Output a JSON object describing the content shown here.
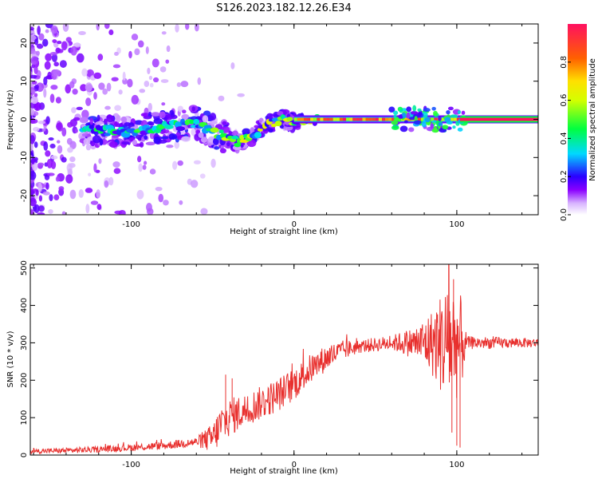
{
  "title": "S126.2023.182.12.26.E34",
  "chart_data": [
    {
      "type": "heatmap",
      "xlabel": "Height of straight line (km)",
      "ylabel": "Frequency (Hz)",
      "xlim": [
        -162,
        150
      ],
      "ylim": [
        -25,
        25
      ],
      "xticks": [
        "-100",
        "0",
        "100"
      ],
      "yticks": [
        "-20",
        "-10",
        "0",
        "10",
        "20"
      ],
      "ytick_values": [
        -20,
        -10,
        0,
        10,
        20
      ],
      "xtick_values": [
        -100,
        0,
        100
      ],
      "colorbar": {
        "label": "Normalized spectral amplitude",
        "ticks": [
          "0.0",
          "0.2",
          "0.4",
          "0.6",
          "0.8"
        ],
        "tick_values": [
          0,
          0.2,
          0.4,
          0.6,
          0.8
        ],
        "range": [
          0,
          1
        ],
        "colors": [
          "#ffffff",
          "#d8b4ff",
          "#8a00ff",
          "#2a00ff",
          "#00d9ff",
          "#00ff40",
          "#d4ff00",
          "#ffe000",
          "#ff6000",
          "#ff1060"
        ]
      },
      "ridge": {
        "x": [
          -100,
          -80,
          -60,
          -45,
          -35,
          -25,
          -15,
          -5,
          5,
          15,
          60,
          80,
          100,
          150
        ],
        "y": [
          -3,
          -2,
          -1,
          -4,
          -6,
          -4,
          -1,
          0,
          -1,
          0,
          0,
          0,
          0,
          0
        ]
      }
    },
    {
      "type": "line",
      "xlabel": "Height of straight line (km)",
      "ylabel": "SNR (10 * v/v)",
      "xlim": [
        -162,
        150
      ],
      "ylim": [
        0,
        510
      ],
      "xticks": [
        "-100",
        "0",
        "100"
      ],
      "yticks": [
        "0",
        "100",
        "200",
        "300",
        "400",
        "500"
      ],
      "ytick_values": [
        0,
        100,
        200,
        300,
        400,
        500
      ],
      "xtick_values": [
        -100,
        0,
        100
      ],
      "color": "#e8302e",
      "profile": {
        "x": [
          -162,
          -140,
          -120,
          -100,
          -80,
          -60,
          -50,
          -45,
          -40,
          -30,
          -20,
          -10,
          0,
          10,
          20,
          30,
          40,
          50,
          60,
          70,
          80,
          90,
          100,
          110,
          120,
          150
        ],
        "y": [
          10,
          12,
          15,
          20,
          25,
          35,
          45,
          80,
          100,
          120,
          140,
          160,
          190,
          230,
          260,
          280,
          290,
          295,
          300,
          300,
          300,
          300,
          300,
          300,
          300,
          300
        ]
      },
      "noise": {
        "x": [
          -162,
          -60,
          -45,
          -30,
          0,
          20,
          40,
          60,
          75,
          85,
          92,
          98,
          103,
          106,
          150
        ],
        "y": [
          6,
          12,
          55,
          45,
          45,
          35,
          18,
          20,
          45,
          90,
          150,
          170,
          120,
          18,
          12
        ]
      },
      "peaks": [
        {
          "x": 95,
          "y": 510
        },
        {
          "x": 98,
          "y": 470
        },
        {
          "x": 100,
          "y": 25
        },
        {
          "x": 102,
          "y": 20
        },
        {
          "x": 97,
          "y": 60
        },
        {
          "x": -42,
          "y": 215
        },
        {
          "x": -38,
          "y": 205
        }
      ]
    }
  ]
}
